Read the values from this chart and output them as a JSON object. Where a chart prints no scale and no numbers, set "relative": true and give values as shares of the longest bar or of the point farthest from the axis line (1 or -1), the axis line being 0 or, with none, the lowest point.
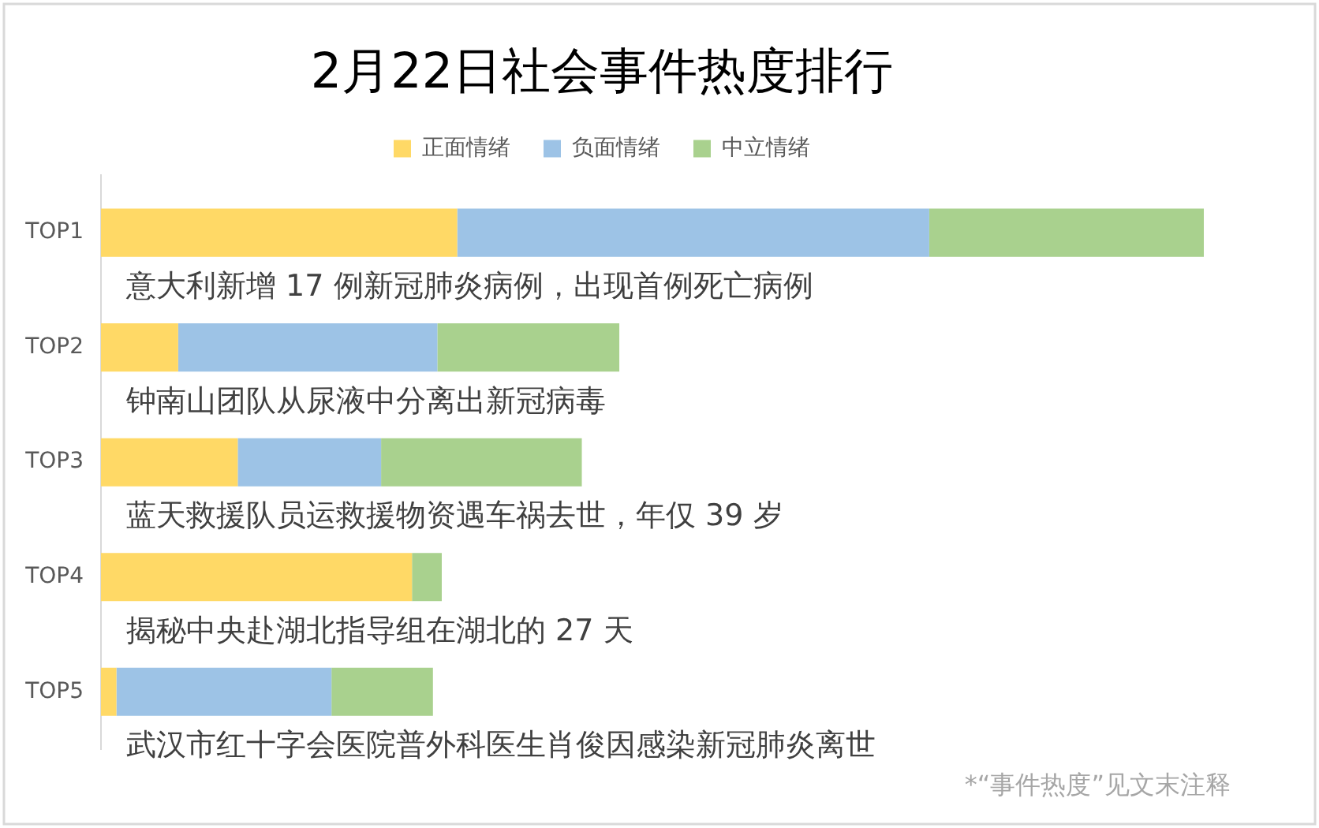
{
  "chart_data": {
    "type": "bar",
    "orientation": "horizontal",
    "stacked": true,
    "relative": true,
    "title": "2月22日社会事件热度排行",
    "categories": [
      "TOP1",
      "TOP2",
      "TOP3",
      "TOP4",
      "TOP5"
    ],
    "series": [
      {
        "name": "正面情绪",
        "color": "#ffd966",
        "values": [
          0.323,
          0.07,
          0.124,
          0.282,
          0.014
        ]
      },
      {
        "name": "负面情绪",
        "color": "#9dc3e6",
        "values": [
          0.428,
          0.235,
          0.13,
          0,
          0.195
        ]
      },
      {
        "name": "中立情绪",
        "color": "#a9d18e",
        "values": [
          0.249,
          0.165,
          0.182,
          0.027,
          0.092
        ]
      }
    ],
    "annotations": [
      "意大利新增 17 例新冠肺炎病例，出现首例死亡病例",
      "钟南山团队从尿液中分离出新冠病毒",
      "蓝天救援队员运救援物资遇车祸去世，年仅 39 岁",
      "揭秘中央赴湖北指导组在湖北的 27 天",
      "武汉市红十字会医院普外科医生肖俊因感染新冠肺炎离世",
      "*“事件热度”见文末注释"
    ],
    "legend": "top"
  }
}
